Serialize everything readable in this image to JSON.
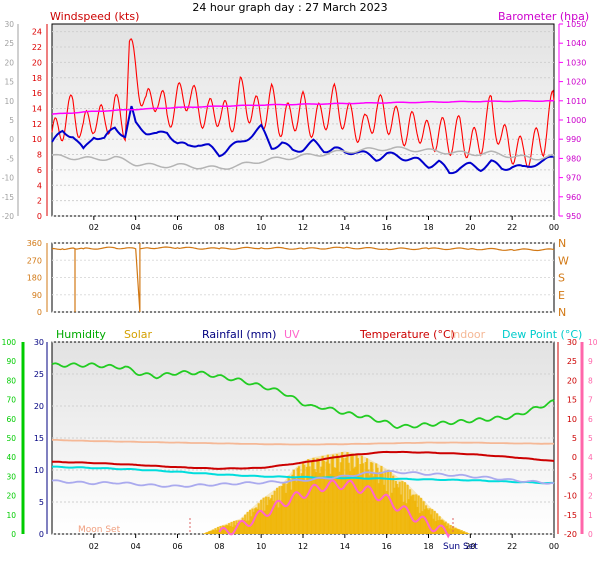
{
  "header": {
    "title": "24 hour graph day : 27 March 2023"
  },
  "colors": {
    "windspeed": "#ff0000",
    "windavg": "#0000cc",
    "windgray": "#b4b4b4",
    "barometer": "#ff00ff",
    "direction": "#d27814",
    "humidity": "#22cc22",
    "solar": "#f0b400",
    "rainfall": "#000080",
    "uv": "#ff66cc",
    "temperature": "#cc0000",
    "indoor": "#f5b896",
    "dewpoint": "#00dddd",
    "lavender": "#aaaaee",
    "left_axis_green": "#00cc00",
    "right_axis_pink": "#ff66aa",
    "left_axis_gray": "#a0a0a0"
  },
  "chart_data": [
    {
      "id": "wind",
      "type": "line",
      "legend_left": "Windspeed (kts)",
      "legend_right": "Barometer (hpa)",
      "x_ticks": [
        "02",
        "04",
        "06",
        "08",
        "10",
        "12",
        "14",
        "16",
        "18",
        "20",
        "22",
        "00"
      ],
      "x_range": [
        0,
        24
      ],
      "y_left_ticks": [
        "0",
        "2",
        "4",
        "6",
        "8",
        "10",
        "12",
        "14",
        "16",
        "18",
        "20",
        "22",
        "24"
      ],
      "y_left_range": [
        0,
        25
      ],
      "y_gray_ticks": [
        "-20",
        "-15",
        "-10",
        "-5",
        "0",
        "5",
        "10",
        "15",
        "20",
        "25",
        "30"
      ],
      "y_gray_range": [
        -20,
        30
      ],
      "y_right_ticks": [
        "950",
        "960",
        "970",
        "980",
        "990",
        "1000",
        "1010",
        "1020",
        "1030",
        "1040",
        "1050"
      ],
      "y_right_range": [
        950,
        1050
      ],
      "series": [
        {
          "key": "gust",
          "color_key": "windspeed",
          "x": [
            0,
            0.5,
            1,
            1.5,
            2,
            2.5,
            3,
            3.5,
            3.7,
            4,
            4.5,
            5,
            5.5,
            6,
            6.5,
            7,
            7.5,
            8,
            8.5,
            9,
            9.5,
            10,
            10.5,
            11,
            11.5,
            12,
            12.5,
            13,
            13.5,
            14,
            14.5,
            15,
            15.5,
            16,
            16.5,
            17,
            17.5,
            18,
            18.5,
            19,
            19.5,
            20,
            20.5,
            21,
            21.5,
            22,
            22.5,
            23,
            23.5,
            24
          ],
          "y": [
            10,
            12,
            14,
            11,
            13,
            12,
            14,
            12,
            22,
            19,
            14,
            16,
            13,
            15,
            16,
            14,
            13,
            14,
            12,
            16,
            14,
            13,
            15,
            12,
            13,
            14,
            12,
            13,
            15,
            13,
            12,
            11,
            14,
            13,
            12,
            11,
            12,
            10,
            11,
            10,
            11,
            9,
            10,
            14,
            10,
            9,
            8,
            9,
            10,
            15
          ]
        },
        {
          "key": "avg",
          "color_key": "windavg",
          "x": [
            0,
            0.5,
            1,
            1.5,
            2,
            2.5,
            3,
            3.5,
            3.8,
            4,
            4.5,
            5,
            5.5,
            6,
            6.5,
            7,
            7.5,
            8,
            8.5,
            9,
            9.5,
            10,
            10.5,
            11,
            11.5,
            12,
            12.5,
            13,
            13.5,
            14,
            14.5,
            15,
            15.5,
            16,
            16.5,
            17,
            17.5,
            18,
            18.5,
            19,
            19.5,
            20,
            20.5,
            21,
            21.5,
            22,
            22.5,
            23,
            23.5,
            24
          ],
          "y": [
            9.5,
            11,
            10.5,
            8.5,
            10.5,
            10,
            11.5,
            10.5,
            14,
            12,
            11,
            10.5,
            11,
            9.5,
            9,
            9.5,
            9,
            8,
            9,
            9.5,
            10.5,
            11.5,
            9,
            9.5,
            8.5,
            8.8,
            9.6,
            8.6,
            8.8,
            8.2,
            8.5,
            8,
            7.5,
            8,
            7.8,
            7.5,
            7.2,
            6.6,
            7,
            5.6,
            6.4,
            6.6,
            6.2,
            7,
            6.2,
            6.5,
            6.2,
            6.8,
            7,
            7.8
          ]
        },
        {
          "key": "gray",
          "color_key": "windgray",
          "x": [
            0,
            1,
            2,
            3,
            4,
            5,
            6,
            7,
            8,
            9,
            10,
            11,
            12,
            13,
            14,
            15,
            16,
            17,
            18,
            19,
            20,
            21,
            22,
            23,
            24
          ],
          "y": [
            7.8,
            7.6,
            7.4,
            7.6,
            6.8,
            6.5,
            6.6,
            6.4,
            6.2,
            6.6,
            7.2,
            7.5,
            7.8,
            8.1,
            8.4,
            8.6,
            8.8,
            8.7,
            8.5,
            8.3,
            8.1,
            8.2,
            7.8,
            7.5,
            7.8
          ]
        },
        {
          "key": "baro",
          "color_key": "barometer",
          "axis": "right",
          "x": [
            0,
            2,
            4,
            6,
            8,
            10,
            12,
            14,
            16,
            18,
            20,
            22,
            24
          ],
          "y": [
            1003,
            1004.5,
            1005.5,
            1006.5,
            1007.2,
            1007.8,
            1008.2,
            1008.6,
            1009,
            1009.3,
            1009.6,
            1009.8,
            1010
          ]
        }
      ]
    },
    {
      "id": "direction",
      "type": "line",
      "y_left_ticks": [
        "0",
        "90",
        "180",
        "270",
        "360"
      ],
      "y_left_range": [
        0,
        360
      ],
      "y_right_labels": [
        "N",
        "W",
        "S",
        "E",
        "N"
      ],
      "series": [
        {
          "key": "dir",
          "color_key": "direction",
          "x": [
            0,
            0.5,
            1.1,
            1.1,
            1.1,
            1.5,
            3,
            4,
            4.2,
            4.2,
            4.2,
            4.5,
            6,
            8,
            10,
            12,
            14,
            16,
            18,
            20,
            22,
            24
          ],
          "y": [
            330,
            330,
            330,
            0,
            330,
            330,
            335,
            330,
            0,
            360,
            330,
            335,
            335,
            330,
            335,
            330,
            335,
            330,
            330,
            330,
            325,
            325
          ]
        }
      ]
    },
    {
      "id": "thermo",
      "type": "line",
      "legend": [
        "Humidity",
        "Solar",
        "Rainfall (mm)",
        "UV",
        "Temperature (°C)",
        "Indoor",
        "Dew Point (°C)"
      ],
      "x_ticks": [
        "02",
        "04",
        "06",
        "08",
        "10",
        "12",
        "14",
        "16",
        "18",
        "20",
        "22",
        "00"
      ],
      "x_range": [
        0,
        24
      ],
      "y_left_ticks": [
        "0",
        "10",
        "20",
        "30",
        "40",
        "50",
        "60",
        "70",
        "80",
        "90",
        "100"
      ],
      "y_left_range": [
        0,
        100
      ],
      "y_rain_ticks": [
        "0",
        "5",
        "10",
        "15",
        "20",
        "25",
        "30"
      ],
      "y_rain_range": [
        0,
        30
      ],
      "y_temp_ticks": [
        "-20",
        "-15",
        "-10",
        "-5",
        "0",
        "5",
        "10",
        "15",
        "20",
        "25",
        "30"
      ],
      "y_temp_range": [
        -20,
        30
      ],
      "y_uv_ticks": [
        "0",
        "1",
        "2",
        "3",
        "4",
        "5",
        "6",
        "7",
        "8",
        "9",
        "10"
      ],
      "y_uv_range": [
        0,
        10
      ],
      "moon_label": "Moon Set",
      "sun_label": "Sun Set",
      "series": [
        {
          "key": "hum",
          "color_key": "humidity",
          "axis": "left",
          "x": [
            0,
            1,
            2,
            3,
            3.5,
            4,
            5,
            6,
            7,
            8,
            9,
            10,
            11,
            12,
            12.5,
            13,
            14,
            15,
            16,
            16.5,
            17,
            18,
            19,
            20,
            21,
            22,
            23,
            24
          ],
          "y": [
            88,
            88,
            88,
            87,
            87,
            84,
            82,
            84,
            84,
            82,
            80,
            77,
            74,
            68,
            66,
            66,
            63,
            61,
            58,
            56,
            56,
            57,
            58,
            59,
            60,
            61,
            65,
            69
          ]
        },
        {
          "key": "solar",
          "color_key": "solar",
          "axis": "left",
          "x": [
            7.2,
            8,
            9,
            10,
            11,
            11.5,
            12,
            12.5,
            13,
            13.5,
            14,
            14.5,
            15,
            15.5,
            16,
            16.5,
            17,
            18,
            19,
            20
          ],
          "y": [
            0,
            4,
            8,
            18,
            26,
            33,
            38,
            40,
            41,
            42,
            43,
            42,
            40,
            37,
            34,
            30,
            26,
            15,
            5,
            0
          ]
        },
        {
          "key": "uv",
          "color_key": "uv",
          "axis": "uv",
          "x": [
            8,
            9,
            10,
            11,
            12,
            13,
            14,
            15,
            16,
            17,
            18,
            19
          ],
          "y": [
            0,
            0.4,
            1,
            1.6,
            2.1,
            2.5,
            2.6,
            2.3,
            1.8,
            1.1,
            0.5,
            0
          ]
        },
        {
          "key": "temp",
          "color_key": "temperature",
          "axis": "temp",
          "x": [
            0,
            2,
            4,
            6,
            8,
            10,
            12,
            14,
            16,
            18,
            20,
            22,
            24
          ],
          "y": [
            -1.2,
            -1.5,
            -2,
            -2.6,
            -3,
            -2.8,
            -1.4,
            0.4,
            1.4,
            1.2,
            0.8,
            0,
            -1
          ]
        },
        {
          "key": "dew",
          "color_key": "dewpoint",
          "axis": "temp",
          "x": [
            0,
            2,
            4,
            6,
            8,
            10,
            12,
            14,
            16,
            18,
            20,
            22,
            24
          ],
          "y": [
            -2.5,
            -2.8,
            -3.2,
            -3.8,
            -4.5,
            -5,
            -5.2,
            -5.4,
            -5.6,
            -5.8,
            -6,
            -6.4,
            -6.8
          ]
        },
        {
          "key": "indoor",
          "color_key": "indoor",
          "axis": "temp",
          "x": [
            0,
            2,
            4,
            6,
            8,
            10,
            12,
            14,
            16,
            18,
            20,
            22,
            24
          ],
          "y": [
            4.5,
            4.2,
            4,
            3.8,
            3.6,
            3.4,
            3.3,
            3.4,
            3.6,
            3.8,
            3.8,
            3.6,
            3.5
          ]
        },
        {
          "key": "lav",
          "color_key": "lavender",
          "axis": "temp",
          "x": [
            0,
            1,
            2,
            3,
            4,
            5,
            6,
            7,
            8,
            9,
            10,
            11,
            12,
            13,
            14,
            15,
            16,
            17,
            18,
            19,
            20,
            21,
            22,
            23,
            24
          ],
          "y": [
            -6.2,
            -6.5,
            -6.8,
            -6.6,
            -7,
            -7.4,
            -7.6,
            -7.3,
            -7.1,
            -6.8,
            -6.6,
            -6.4,
            -6,
            -5.5,
            -5,
            -4.2,
            -3.8,
            -4,
            -4.4,
            -4.6,
            -5,
            -5.4,
            -6,
            -6.4,
            -6.8
          ]
        }
      ]
    }
  ]
}
